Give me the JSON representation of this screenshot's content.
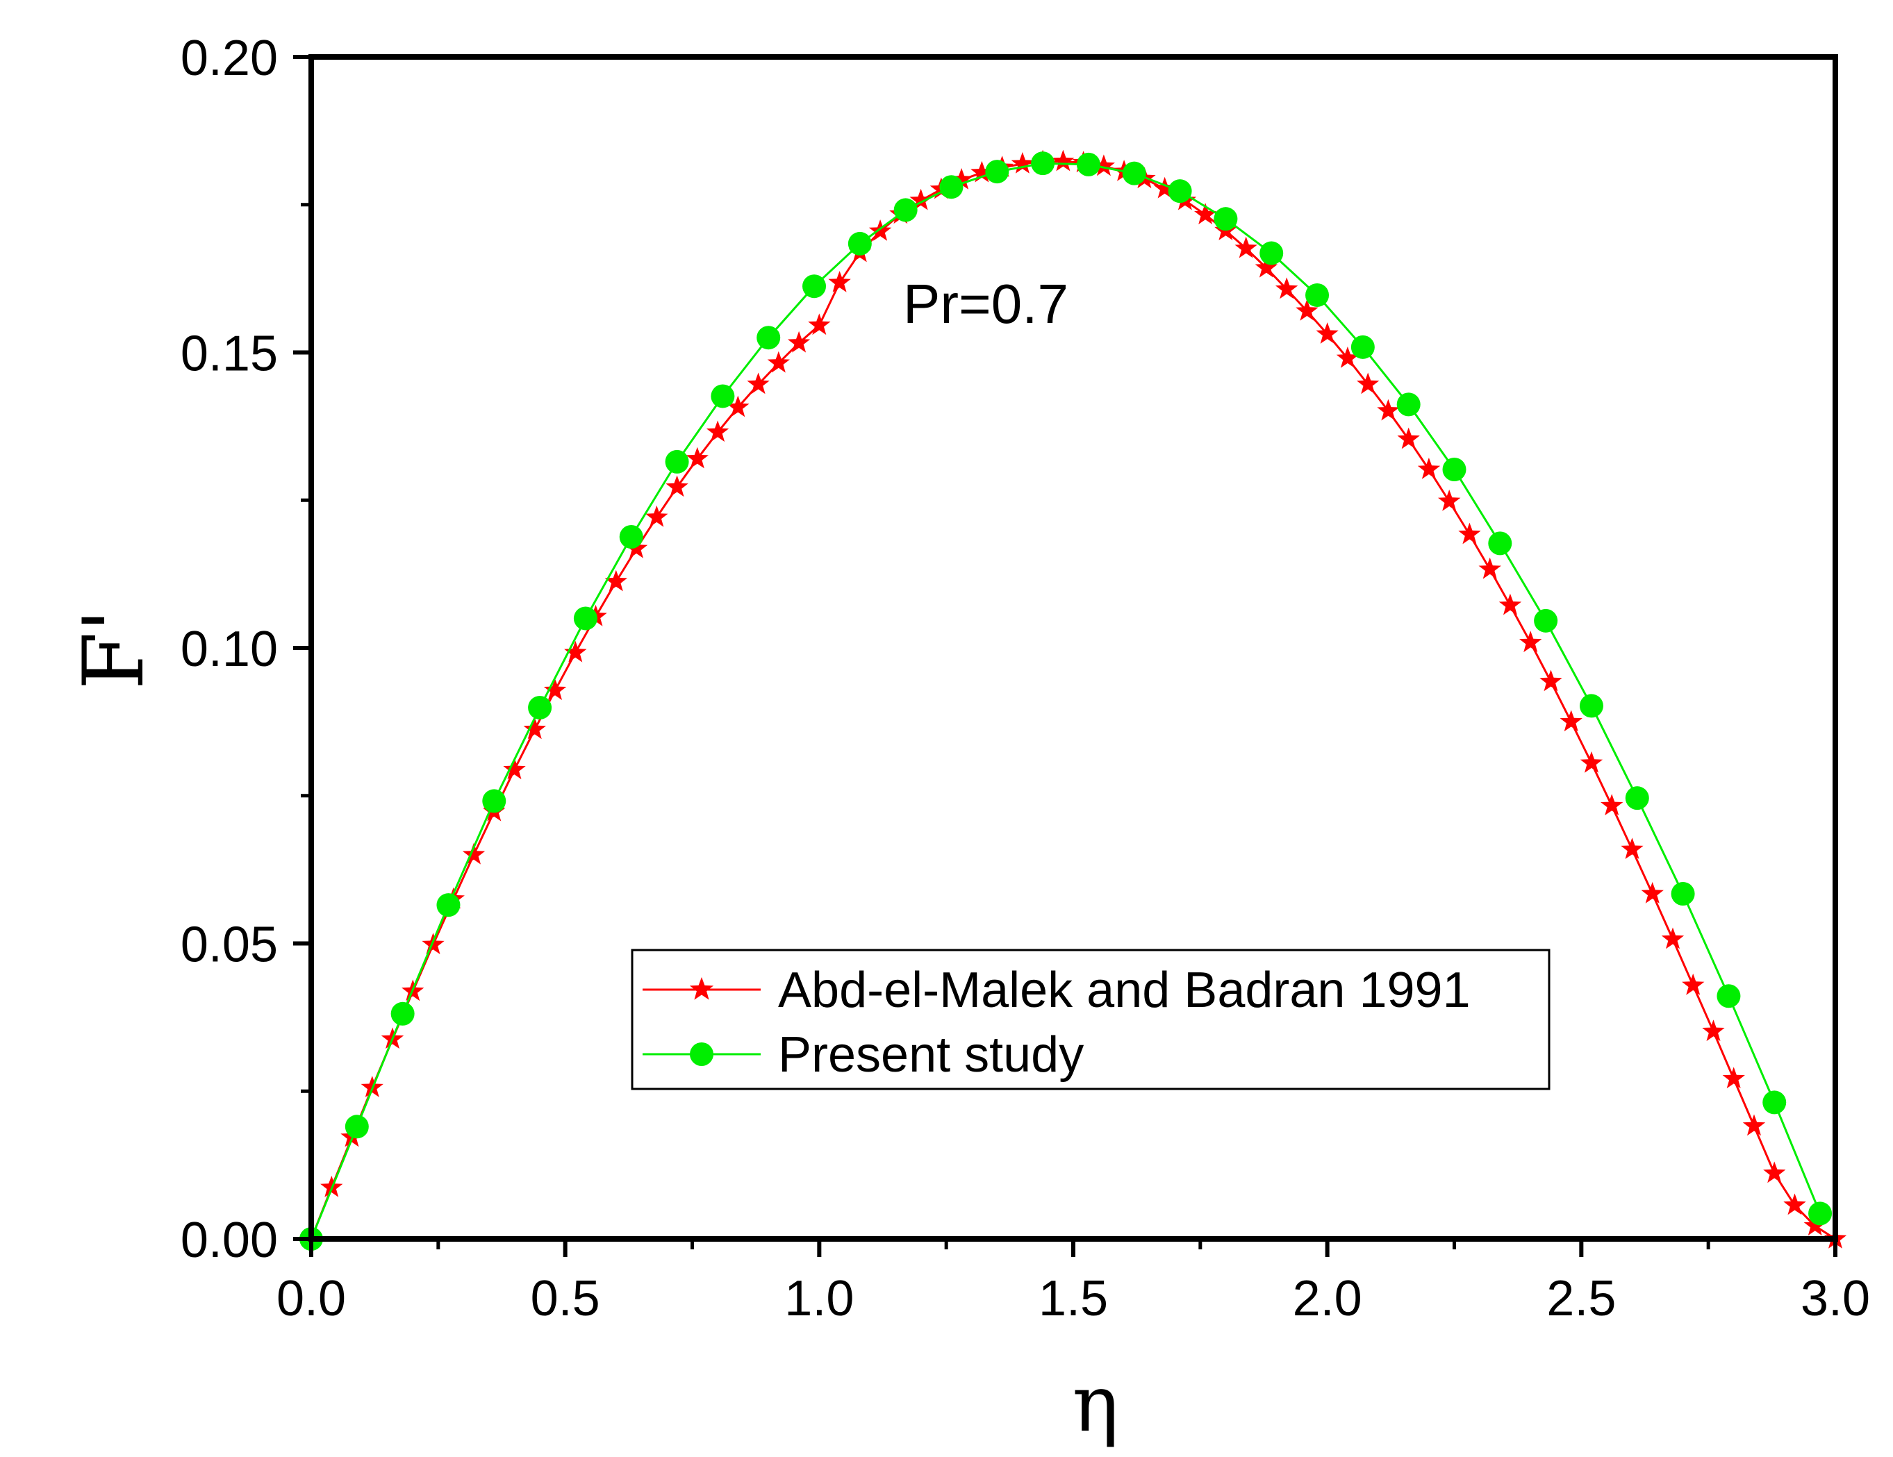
{
  "chart_data": {
    "type": "line",
    "xlabel": "η",
    "ylabel": "F'",
    "xlim": [
      0,
      3.0
    ],
    "ylim": [
      0,
      0.2
    ],
    "xticks": [
      "0.0",
      "0.5",
      "1.0",
      "1.5",
      "2.0",
      "2.5",
      "3.0"
    ],
    "yticks": [
      "0.00",
      "0.05",
      "0.10",
      "0.15",
      "0.20"
    ],
    "annotation": "Pr=0.7",
    "legend_position": "lower-center",
    "grid": false,
    "series": [
      {
        "name": "Abd-el-Malek and Badran 1991",
        "color": "#ff0000",
        "marker": "star",
        "x": [
          0.0,
          0.04,
          0.08,
          0.12,
          0.16,
          0.2,
          0.24,
          0.28,
          0.32,
          0.36,
          0.4,
          0.44,
          0.48,
          0.52,
          0.56,
          0.6,
          0.64,
          0.68,
          0.72,
          0.76,
          0.8,
          0.84,
          0.88,
          0.92,
          0.96,
          1.0,
          1.04,
          1.08,
          1.12,
          1.16,
          1.2,
          1.24,
          1.28,
          1.32,
          1.36,
          1.4,
          1.44,
          1.48,
          1.52,
          1.56,
          1.6,
          1.64,
          1.68,
          1.72,
          1.76,
          1.8,
          1.84,
          1.88,
          1.92,
          1.96,
          2.0,
          2.04,
          2.08,
          2.12,
          2.16,
          2.2,
          2.24,
          2.28,
          2.32,
          2.36,
          2.4,
          2.44,
          2.48,
          2.52,
          2.56,
          2.6,
          2.64,
          2.68,
          2.72,
          2.76,
          2.8,
          2.84,
          2.88,
          2.92,
          2.96,
          3.0
        ],
        "y": [
          0.0,
          0.0087,
          0.0172,
          0.0256,
          0.0338,
          0.0419,
          0.0498,
          0.0575,
          0.065,
          0.0723,
          0.0794,
          0.0862,
          0.0928,
          0.0992,
          0.1053,
          0.1112,
          0.1168,
          0.1221,
          0.1272,
          0.132,
          0.1365,
          0.1407,
          0.1446,
          0.1482,
          0.1516,
          0.1546,
          0.1618,
          0.1669,
          0.1705,
          0.1734,
          0.1757,
          0.1776,
          0.1792,
          0.1804,
          0.1813,
          0.1819,
          0.1823,
          0.1823,
          0.1821,
          0.1815,
          0.1806,
          0.1794,
          0.1777,
          0.1757,
          0.1733,
          0.1706,
          0.1676,
          0.1643,
          0.1607,
          0.157,
          0.1531,
          0.149,
          0.1446,
          0.1401,
          0.1353,
          0.1302,
          0.1248,
          0.1192,
          0.1133,
          0.1072,
          0.1009,
          0.0943,
          0.0875,
          0.0805,
          0.0733,
          0.0659,
          0.0584,
          0.0507,
          0.0429,
          0.0351,
          0.0271,
          0.0191,
          0.0111,
          0.0057,
          0.0022,
          0.0
        ]
      },
      {
        "name": "Present study",
        "color": "#00ee00",
        "marker": "circle",
        "x": [
          0.0,
          0.09,
          0.18,
          0.27,
          0.36,
          0.45,
          0.54,
          0.63,
          0.72,
          0.81,
          0.9,
          0.99,
          1.08,
          1.17,
          1.26,
          1.35,
          1.44,
          1.53,
          1.62,
          1.71,
          1.8,
          1.89,
          1.98,
          2.07,
          2.16,
          2.25,
          2.34,
          2.43,
          2.52,
          2.61,
          2.7,
          2.79,
          2.88,
          2.97
        ],
        "y": [
          0.0,
          0.019,
          0.0381,
          0.0565,
          0.0741,
          0.0899,
          0.105,
          0.1188,
          0.1315,
          0.1426,
          0.1525,
          0.1612,
          0.1684,
          0.1741,
          0.178,
          0.1806,
          0.182,
          0.1818,
          0.1803,
          0.1773,
          0.1726,
          0.1668,
          0.1597,
          0.1509,
          0.1412,
          0.1302,
          0.1177,
          0.1046,
          0.0902,
          0.0746,
          0.0584,
          0.0411,
          0.0231,
          0.0043
        ]
      }
    ]
  }
}
